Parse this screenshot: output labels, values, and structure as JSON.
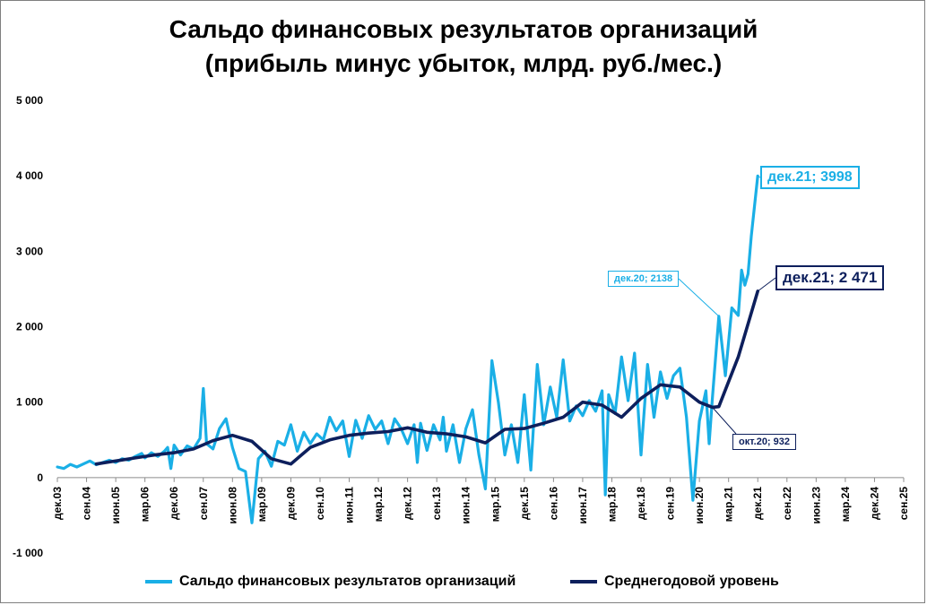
{
  "chart_data": {
    "type": "line",
    "title": [
      "Сальдо финансовых результатов организаций",
      "(прибыль минус убыток, млрд. руб./мес.)"
    ],
    "xlabel": "",
    "ylabel": "",
    "ylim": [
      -1000,
      5000
    ],
    "yticks": [
      -1000,
      0,
      1000,
      2000,
      3000,
      4000,
      5000
    ],
    "ytick_labels": [
      "-1 000",
      "0",
      "1 000",
      "2 000",
      "3 000",
      "4 000",
      "5 000"
    ],
    "xlim": [
      "2003-12",
      "2025-09"
    ],
    "xtick_labels": [
      "дек.03",
      "сен.04",
      "июн.05",
      "мар.06",
      "дек.06",
      "сен.07",
      "июн.08",
      "мар.09",
      "дек.09",
      "сен.10",
      "июн.11",
      "мар.12",
      "дек.12",
      "сен.13",
      "июн.14",
      "мар.15",
      "дек.15",
      "сен.16",
      "июн.17",
      "мар.18",
      "дек.18",
      "сен.19",
      "июн.20",
      "мар.21",
      "дек.21",
      "сен.22",
      "июн.23",
      "мар.24",
      "дек.24",
      "сен.25"
    ],
    "grid": false,
    "legend_position": "bottom",
    "series": [
      {
        "name": "Сальдо финансовых результатов организаций",
        "color": "#1aafe6",
        "points": [
          [
            "2003-12",
            140
          ],
          [
            "2004-02",
            120
          ],
          [
            "2004-04",
            175
          ],
          [
            "2004-06",
            140
          ],
          [
            "2004-08",
            180
          ],
          [
            "2004-10",
            220
          ],
          [
            "2004-12",
            170
          ],
          [
            "2005-02",
            200
          ],
          [
            "2005-04",
            230
          ],
          [
            "2005-06",
            200
          ],
          [
            "2005-08",
            250
          ],
          [
            "2005-10",
            230
          ],
          [
            "2005-12",
            280
          ],
          [
            "2006-02",
            320
          ],
          [
            "2006-03",
            260
          ],
          [
            "2006-05",
            330
          ],
          [
            "2006-07",
            280
          ],
          [
            "2006-09",
            350
          ],
          [
            "2006-10",
            400
          ],
          [
            "2006-11",
            120
          ],
          [
            "2006-12",
            430
          ],
          [
            "2007-02",
            300
          ],
          [
            "2007-04",
            420
          ],
          [
            "2007-06",
            380
          ],
          [
            "2007-08",
            520
          ],
          [
            "2007-09",
            1180
          ],
          [
            "2007-10",
            450
          ],
          [
            "2007-12",
            380
          ],
          [
            "2008-02",
            650
          ],
          [
            "2008-04",
            780
          ],
          [
            "2008-06",
            400
          ],
          [
            "2008-08",
            120
          ],
          [
            "2008-10",
            80
          ],
          [
            "2008-12",
            -600
          ],
          [
            "2009-02",
            250
          ],
          [
            "2009-04",
            350
          ],
          [
            "2009-06",
            150
          ],
          [
            "2009-08",
            480
          ],
          [
            "2009-10",
            430
          ],
          [
            "2009-12",
            700
          ],
          [
            "2010-02",
            350
          ],
          [
            "2010-04",
            600
          ],
          [
            "2010-06",
            450
          ],
          [
            "2010-08",
            580
          ],
          [
            "2010-10",
            500
          ],
          [
            "2010-12",
            800
          ],
          [
            "2011-02",
            620
          ],
          [
            "2011-04",
            750
          ],
          [
            "2011-06",
            280
          ],
          [
            "2011-08",
            760
          ],
          [
            "2011-10",
            520
          ],
          [
            "2011-12",
            820
          ],
          [
            "2012-02",
            640
          ],
          [
            "2012-04",
            750
          ],
          [
            "2012-06",
            450
          ],
          [
            "2012-08",
            780
          ],
          [
            "2012-10",
            650
          ],
          [
            "2012-12",
            450
          ],
          [
            "2013-02",
            700
          ],
          [
            "2013-03",
            200
          ],
          [
            "2013-04",
            720
          ],
          [
            "2013-06",
            360
          ],
          [
            "2013-08",
            700
          ],
          [
            "2013-10",
            500
          ],
          [
            "2013-11",
            800
          ],
          [
            "2013-12",
            350
          ],
          [
            "2014-02",
            700
          ],
          [
            "2014-04",
            200
          ],
          [
            "2014-06",
            650
          ],
          [
            "2014-08",
            900
          ],
          [
            "2014-10",
            300
          ],
          [
            "2014-12",
            -150
          ],
          [
            "2015-02",
            1550
          ],
          [
            "2015-04",
            1000
          ],
          [
            "2015-06",
            300
          ],
          [
            "2015-08",
            700
          ],
          [
            "2015-10",
            200
          ],
          [
            "2015-12",
            1100
          ],
          [
            "2016-02",
            100
          ],
          [
            "2016-04",
            1500
          ],
          [
            "2016-06",
            700
          ],
          [
            "2016-08",
            1200
          ],
          [
            "2016-10",
            800
          ],
          [
            "2016-12",
            1560
          ],
          [
            "2017-02",
            750
          ],
          [
            "2017-04",
            950
          ],
          [
            "2017-06",
            820
          ],
          [
            "2017-08",
            1020
          ],
          [
            "2017-10",
            880
          ],
          [
            "2017-12",
            1150
          ],
          [
            "2018-01",
            -230
          ],
          [
            "2018-02",
            1100
          ],
          [
            "2018-04",
            850
          ],
          [
            "2018-06",
            1600
          ],
          [
            "2018-08",
            1020
          ],
          [
            "2018-10",
            1650
          ],
          [
            "2018-12",
            300
          ],
          [
            "2019-02",
            1500
          ],
          [
            "2019-04",
            800
          ],
          [
            "2019-06",
            1400
          ],
          [
            "2019-08",
            1050
          ],
          [
            "2019-10",
            1350
          ],
          [
            "2019-12",
            1450
          ],
          [
            "2020-02",
            800
          ],
          [
            "2020-04",
            -300
          ],
          [
            "2020-06",
            750
          ],
          [
            "2020-08",
            1150
          ],
          [
            "2020-09",
            450
          ],
          [
            "2020-10",
            1050
          ],
          [
            "2020-12",
            2138
          ],
          [
            "2021-02",
            1350
          ],
          [
            "2021-04",
            2250
          ],
          [
            "2021-06",
            2150
          ],
          [
            "2021-07",
            2750
          ],
          [
            "2021-08",
            2550
          ],
          [
            "2021-09",
            2700
          ],
          [
            "2021-10",
            3200
          ],
          [
            "2021-12",
            3998
          ]
        ]
      },
      {
        "name": "Среднегодовой уровень",
        "color": "#0d1f5c",
        "points": [
          [
            "2004-12",
            180
          ],
          [
            "2005-06",
            220
          ],
          [
            "2005-12",
            260
          ],
          [
            "2006-06",
            300
          ],
          [
            "2006-12",
            330
          ],
          [
            "2007-06",
            380
          ],
          [
            "2007-12",
            490
          ],
          [
            "2008-06",
            560
          ],
          [
            "2008-12",
            480
          ],
          [
            "2009-06",
            250
          ],
          [
            "2009-12",
            180
          ],
          [
            "2010-06",
            400
          ],
          [
            "2010-12",
            500
          ],
          [
            "2011-06",
            560
          ],
          [
            "2011-12",
            590
          ],
          [
            "2012-06",
            610
          ],
          [
            "2012-12",
            660
          ],
          [
            "2013-06",
            600
          ],
          [
            "2013-12",
            580
          ],
          [
            "2014-06",
            540
          ],
          [
            "2014-12",
            460
          ],
          [
            "2015-06",
            640
          ],
          [
            "2015-12",
            650
          ],
          [
            "2016-06",
            720
          ],
          [
            "2016-12",
            800
          ],
          [
            "2017-06",
            1000
          ],
          [
            "2017-12",
            960
          ],
          [
            "2018-06",
            800
          ],
          [
            "2018-12",
            1050
          ],
          [
            "2019-06",
            1230
          ],
          [
            "2019-12",
            1200
          ],
          [
            "2020-06",
            1000
          ],
          [
            "2020-10",
            932
          ],
          [
            "2020-12",
            940
          ],
          [
            "2021-06",
            1600
          ],
          [
            "2021-12",
            2471
          ]
        ]
      }
    ],
    "annotations": [
      {
        "text": "дек.21; 3998",
        "series": 0,
        "x": "2021-12",
        "y": 3998,
        "color": "#1aafe6"
      },
      {
        "text": "дек.20; 2138",
        "series": 0,
        "x": "2020-12",
        "y": 2138,
        "color": "#1aafe6"
      },
      {
        "text": "дек.21; 2 471",
        "series": 1,
        "x": "2021-12",
        "y": 2471,
        "color": "#0d1f5c"
      },
      {
        "text": "окт.20; 932",
        "series": 1,
        "x": "2020-10",
        "y": 932,
        "color": "#0d1f5c"
      }
    ]
  }
}
